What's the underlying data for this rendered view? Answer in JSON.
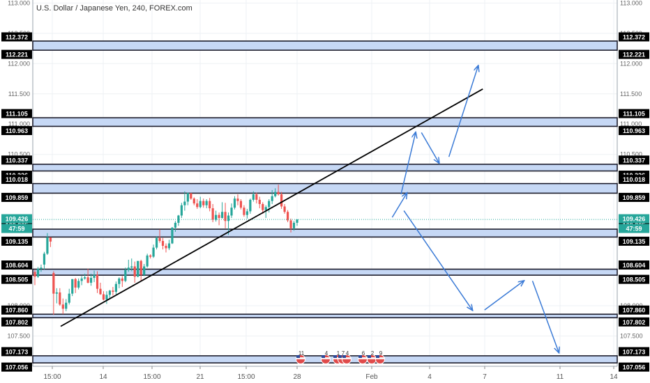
{
  "header": {
    "title": "U.S. Dollar / Japanese Yen, 240, FOREX.com"
  },
  "chart_data": {
    "type": "candlestick",
    "symbol": "USDJPY",
    "interval": "240",
    "ylim": [
      107.0,
      113.05
    ],
    "x_ticks": [
      "15:00",
      "14",
      "15:00",
      "21",
      "15:00",
      "28",
      "Feb",
      "4",
      "7",
      "11",
      "14"
    ],
    "y_ticks": [
      "107.500",
      "108.000",
      "110.500",
      "111.000",
      "111.500",
      "112.000",
      "112.500",
      "113.000"
    ],
    "last_price": "109.426",
    "countdown": "47:59",
    "colors": {
      "up": "#26a69a",
      "down": "#ef5350",
      "zone_fill": "#c6d8f5",
      "arrow": "#3a7ad6",
      "label_bg": "#000000",
      "last_bg": "#26a69a"
    },
    "zones": [
      {
        "top": 112.372,
        "bottom": 112.221,
        "top_label": "112.372",
        "bottom_label": "112.221"
      },
      {
        "top": 111.105,
        "bottom": 110.963,
        "top_label": "111.105",
        "bottom_label": "110.963"
      },
      {
        "top": 110.337,
        "bottom": 110.226,
        "top_label": "110.337",
        "bottom_label": "110.226"
      },
      {
        "top": 110.018,
        "bottom": 109.859,
        "top_label": "110.018",
        "bottom_label": "109.859"
      },
      {
        "top": 109.265,
        "bottom": 109.135,
        "top_label": "109.265",
        "bottom_label": "109.135"
      },
      {
        "top": 108.604,
        "bottom": 108.505,
        "top_label": "108.604",
        "bottom_label": "108.505"
      },
      {
        "top": 107.86,
        "bottom": 107.802,
        "top_label": "107.860",
        "bottom_label": "107.802"
      },
      {
        "top": 107.173,
        "bottom": 107.056,
        "top_label": "107.173",
        "bottom_label": "107.056"
      }
    ],
    "candles": [
      [
        108.56,
        108.6,
        108.34,
        108.48
      ],
      [
        108.48,
        108.64,
        108.46,
        108.61
      ],
      [
        108.61,
        108.68,
        108.56,
        108.63
      ],
      [
        108.68,
        108.89,
        108.6,
        108.86
      ],
      [
        108.86,
        109.2,
        108.84,
        109.13
      ],
      [
        109.13,
        109.12,
        108.97,
        109.06
      ],
      [
        108.54,
        108.57,
        107.85,
        108.2
      ],
      [
        108.2,
        108.29,
        108.04,
        108.22
      ],
      [
        108.22,
        108.29,
        108.0,
        108.02
      ],
      [
        108.02,
        108.12,
        107.86,
        107.95
      ],
      [
        107.95,
        108.11,
        107.91,
        108.05
      ],
      [
        108.05,
        108.28,
        108.02,
        108.2
      ],
      [
        108.2,
        108.44,
        108.16,
        108.44
      ],
      [
        108.44,
        108.46,
        108.21,
        108.3
      ],
      [
        108.3,
        108.45,
        108.27,
        108.41
      ],
      [
        108.41,
        108.49,
        108.34,
        108.45
      ],
      [
        108.45,
        108.53,
        108.43,
        108.47
      ],
      [
        108.47,
        108.61,
        108.37,
        108.38
      ],
      [
        108.38,
        108.53,
        108.33,
        108.46
      ],
      [
        108.46,
        108.58,
        108.39,
        108.51
      ],
      [
        108.51,
        108.57,
        108.21,
        108.28
      ],
      [
        108.28,
        108.38,
        108.18,
        108.19
      ],
      [
        108.19,
        108.24,
        108.09,
        108.1
      ],
      [
        108.1,
        108.24,
        108.03,
        108.18
      ],
      [
        108.18,
        108.26,
        108.13,
        108.25
      ],
      [
        108.25,
        108.31,
        108.17,
        108.23
      ],
      [
        108.23,
        108.4,
        108.19,
        108.36
      ],
      [
        108.36,
        108.47,
        108.29,
        108.45
      ],
      [
        108.45,
        108.49,
        108.31,
        108.41
      ],
      [
        108.41,
        108.63,
        108.39,
        108.59
      ],
      [
        108.59,
        108.76,
        108.56,
        108.63
      ],
      [
        108.63,
        108.78,
        108.57,
        108.65
      ],
      [
        108.65,
        108.73,
        108.38,
        108.48
      ],
      [
        108.48,
        108.74,
        108.47,
        108.74
      ],
      [
        108.74,
        108.76,
        108.41,
        108.51
      ],
      [
        108.51,
        108.69,
        108.49,
        108.65
      ],
      [
        108.65,
        108.86,
        108.63,
        108.83
      ],
      [
        108.83,
        108.85,
        108.78,
        108.81
      ],
      [
        108.81,
        109.01,
        108.79,
        108.96
      ],
      [
        108.96,
        109.15,
        108.93,
        109.12
      ],
      [
        109.12,
        109.26,
        109.04,
        109.07
      ],
      [
        109.07,
        109.12,
        108.93,
        108.99
      ],
      [
        108.99,
        109.03,
        108.88,
        108.95
      ],
      [
        108.95,
        109.09,
        108.92,
        109.03
      ],
      [
        109.03,
        109.3,
        109.02,
        109.29
      ],
      [
        109.29,
        109.4,
        109.22,
        109.37
      ],
      [
        109.37,
        109.5,
        109.32,
        109.49
      ],
      [
        109.49,
        109.7,
        109.45,
        109.66
      ],
      [
        109.66,
        109.89,
        109.57,
        109.72
      ],
      [
        109.72,
        109.87,
        109.66,
        109.86
      ],
      [
        109.86,
        109.83,
        109.75,
        109.77
      ],
      [
        109.77,
        109.79,
        109.66,
        109.69
      ],
      [
        109.69,
        109.76,
        109.6,
        109.63
      ],
      [
        109.63,
        109.8,
        109.61,
        109.73
      ],
      [
        109.73,
        109.77,
        109.62,
        109.66
      ],
      [
        109.66,
        109.76,
        109.61,
        109.73
      ],
      [
        109.73,
        109.78,
        109.56,
        109.61
      ],
      [
        109.61,
        109.68,
        109.38,
        109.42
      ],
      [
        109.42,
        109.57,
        109.39,
        109.5
      ],
      [
        109.5,
        109.54,
        109.33,
        109.45
      ],
      [
        109.45,
        109.71,
        109.44,
        109.55
      ],
      [
        109.55,
        109.7,
        109.28,
        109.4
      ],
      [
        109.4,
        109.54,
        109.17,
        109.49
      ],
      [
        109.49,
        109.69,
        109.45,
        109.62
      ],
      [
        109.62,
        109.81,
        109.59,
        109.77
      ],
      [
        109.77,
        109.84,
        109.66,
        109.73
      ],
      [
        109.73,
        109.76,
        109.59,
        109.62
      ],
      [
        109.62,
        109.66,
        109.47,
        109.5
      ],
      [
        109.5,
        109.6,
        109.44,
        109.56
      ],
      [
        109.56,
        109.77,
        109.52,
        109.75
      ],
      [
        109.75,
        109.89,
        109.72,
        109.84
      ],
      [
        109.84,
        109.87,
        109.69,
        109.75
      ],
      [
        109.75,
        109.8,
        109.61,
        109.68
      ],
      [
        109.68,
        109.71,
        109.52,
        109.58
      ],
      [
        109.58,
        109.66,
        109.45,
        109.63
      ],
      [
        109.63,
        109.76,
        109.54,
        109.73
      ],
      [
        109.73,
        109.91,
        109.68,
        109.81
      ],
      [
        109.81,
        109.94,
        109.79,
        109.88
      ],
      [
        109.88,
        110.0,
        109.82,
        109.84
      ],
      [
        109.84,
        109.88,
        109.6,
        109.64
      ],
      [
        109.64,
        109.68,
        109.52,
        109.55
      ],
      [
        109.55,
        109.58,
        109.38,
        109.41
      ],
      [
        109.41,
        109.44,
        109.21,
        109.28
      ],
      [
        109.28,
        109.4,
        109.24,
        109.37
      ],
      [
        109.37,
        109.43,
        109.32,
        109.426
      ]
    ],
    "trendline": {
      "x": [
        0,
        0.77
      ],
      "y": [
        107.66,
        111.58
      ]
    },
    "arrows": [
      {
        "path": [
          [
            0.615,
            109.46
          ],
          [
            0.64,
            109.86
          ]
        ]
      },
      {
        "path": [
          [
            0.63,
            109.84
          ],
          [
            0.655,
            110.86
          ]
        ]
      },
      {
        "path": [
          [
            0.665,
            110.86
          ],
          [
            0.695,
            110.36
          ]
        ]
      },
      {
        "path": [
          [
            0.712,
            110.46
          ],
          [
            0.762,
            111.96
          ]
        ]
      },
      {
        "path": [
          [
            0.635,
            109.57
          ],
          [
            0.752,
            107.93
          ]
        ]
      },
      {
        "path": [
          [
            0.773,
            107.93
          ],
          [
            0.84,
            108.41
          ]
        ]
      },
      {
        "path": [
          [
            0.855,
            108.41
          ],
          [
            0.9,
            107.23
          ]
        ]
      }
    ],
    "events": [
      {
        "label": "11"
      },
      {
        "label": "4"
      },
      {
        "label": "1"
      },
      {
        "label": "7"
      },
      {
        "label": "4"
      },
      {
        "label": "6"
      },
      {
        "label": "2"
      },
      {
        "label": "9"
      }
    ]
  }
}
